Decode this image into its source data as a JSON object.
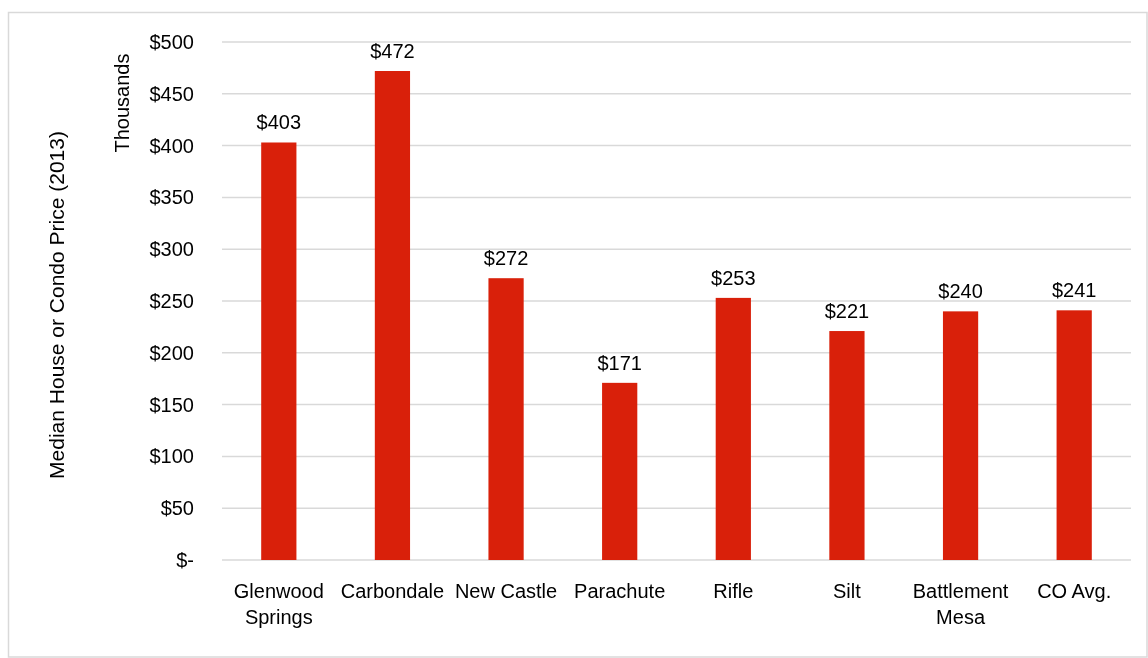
{
  "chart_data": {
    "type": "bar",
    "ylabel": "Median House or Condo Price (2013)",
    "annotations": [
      "Thousands"
    ],
    "categories": [
      "Glenwood Springs",
      "Carbondale",
      "New Castle",
      "Parachute",
      "Rifle",
      "Silt",
      "Battlement Mesa",
      "CO Avg."
    ],
    "values": [
      403,
      472,
      272,
      171,
      253,
      221,
      240,
      241
    ],
    "color": "#d9200a",
    "value_labels": [
      "$403",
      "$472",
      "$272",
      "$171",
      "$253",
      "$221",
      "$240",
      "$241"
    ],
    "ylim": [
      0,
      500
    ],
    "yticks": [
      {
        "value": 0,
        "label": "$-"
      },
      {
        "value": 50,
        "label": "$50"
      },
      {
        "value": 100,
        "label": "$100"
      },
      {
        "value": 150,
        "label": "$150"
      },
      {
        "value": 200,
        "label": "$200"
      },
      {
        "value": 250,
        "label": "$250"
      },
      {
        "value": 300,
        "label": "$300"
      },
      {
        "value": 350,
        "label": "$350"
      },
      {
        "value": 400,
        "label": "$400"
      },
      {
        "value": 450,
        "label": "$450"
      },
      {
        "value": 500,
        "label": "$500"
      }
    ],
    "grid": "y"
  }
}
